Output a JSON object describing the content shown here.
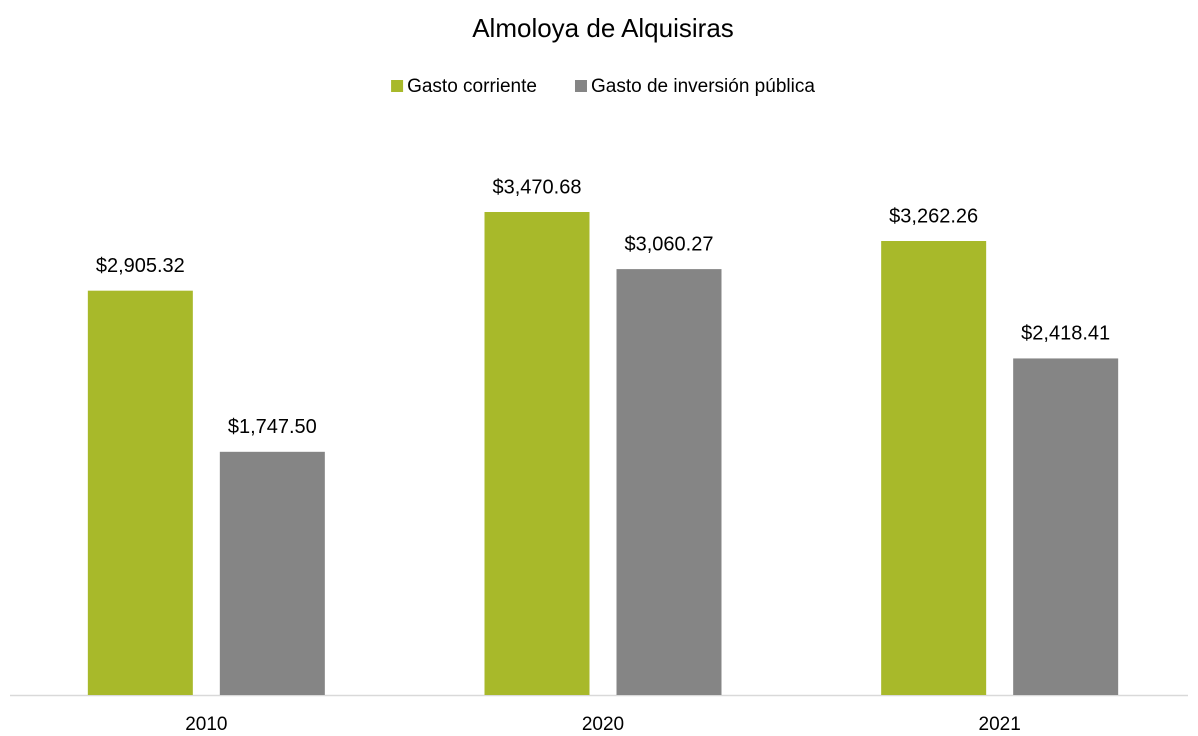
{
  "chart_data": {
    "type": "bar",
    "title": "Almoloya de Alquisiras",
    "categories": [
      "2010",
      "2020",
      "2021"
    ],
    "series": [
      {
        "name": "Gasto corriente",
        "color": "#a8b92a",
        "values": [
          2905.32,
          3470.68,
          3262.26
        ],
        "value_labels": [
          "$2,905.32",
          "$3,470.68",
          "$3,262.26"
        ]
      },
      {
        "name": "Gasto de inversión pública",
        "color": "#858585",
        "values": [
          1747.5,
          3060.27,
          2418.41
        ],
        "value_labels": [
          "$1,747.50",
          "$3,060.27",
          "$2,418.41"
        ]
      }
    ],
    "legend": "top"
  }
}
